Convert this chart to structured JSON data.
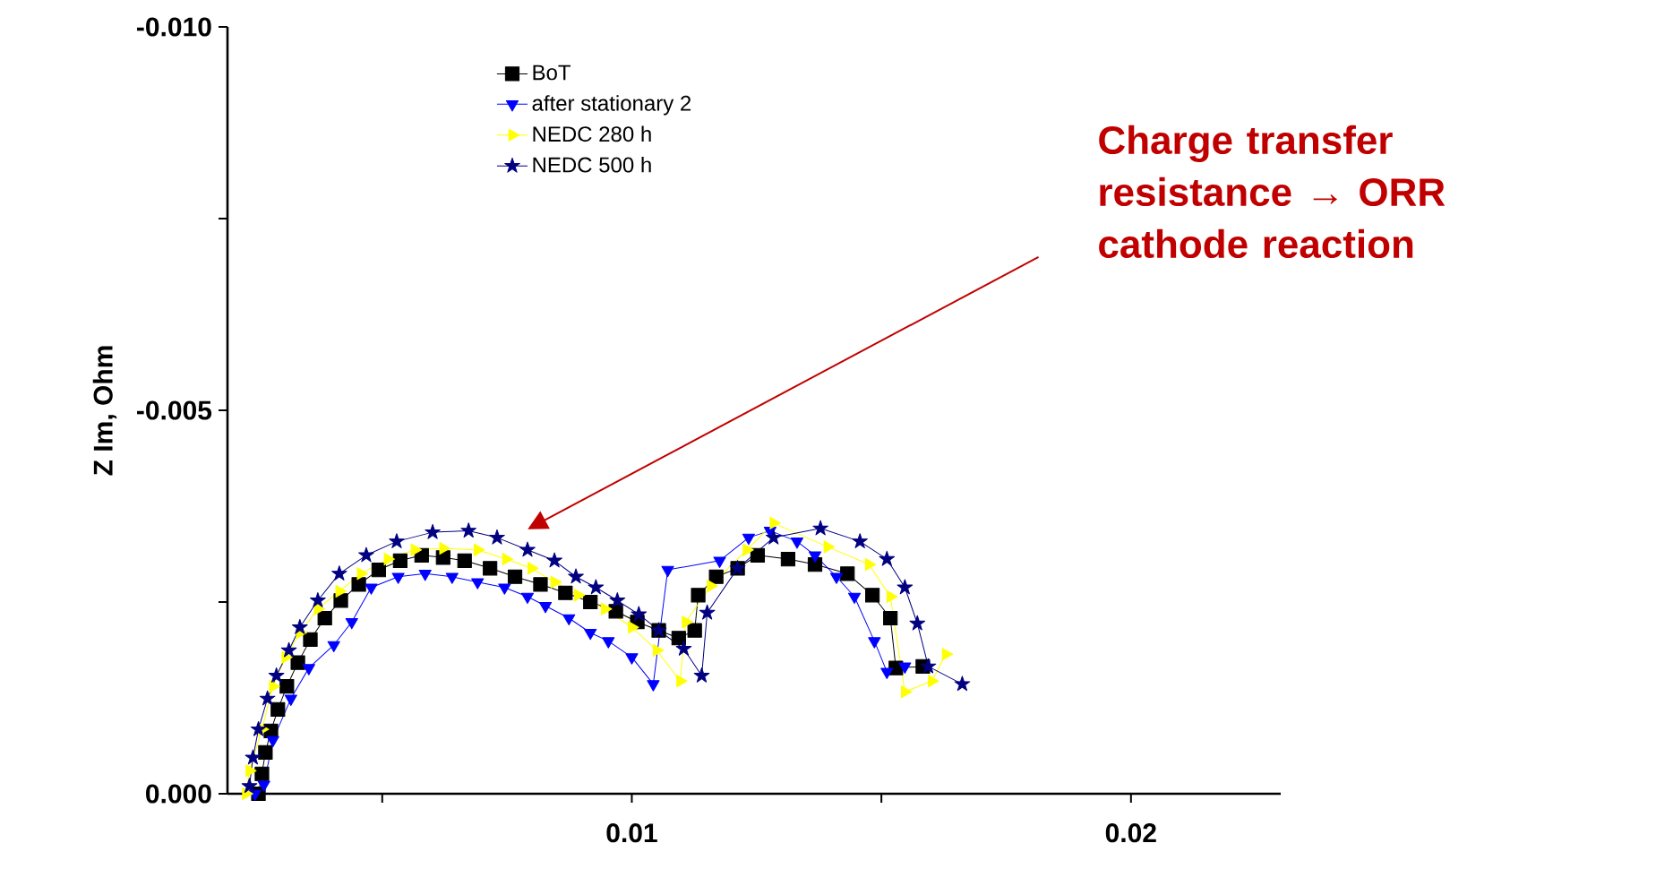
{
  "chart_data": {
    "type": "line",
    "ylabel": "Z Im, Ohm",
    "xlim": [
      0.0019,
      0.023
    ],
    "ylim": [
      0,
      -0.01
    ],
    "xticks": [
      {
        "value": 0.005,
        "label": null
      },
      {
        "value": 0.01,
        "label": "0.01"
      },
      {
        "value": 0.015,
        "label": null
      },
      {
        "value": 0.02,
        "label": "0.02"
      }
    ],
    "yticks": [
      {
        "value": -0.01,
        "label": "-0.010"
      },
      {
        "value": -0.0075,
        "label": null
      },
      {
        "value": -0.005,
        "label": "-0.005"
      },
      {
        "value": -0.0025,
        "label": null
      },
      {
        "value": 0,
        "label": "0.000"
      }
    ],
    "legend": "top left",
    "grid": false,
    "series": [
      {
        "name": "BoT",
        "color": "#000000",
        "marker": "square",
        "x": [
          0.00252,
          0.00259,
          0.00266,
          0.00277,
          0.00291,
          0.00309,
          0.00331,
          0.00356,
          0.00385,
          0.00417,
          0.00453,
          0.00493,
          0.00536,
          0.00579,
          0.00622,
          0.00665,
          0.00716,
          0.00766,
          0.00817,
          0.00867,
          0.00917,
          0.00968,
          0.01011,
          0.01054,
          0.01094,
          0.01126,
          0.01133,
          0.01169,
          0.01212,
          0.01252,
          0.01313,
          0.01367,
          0.01432,
          0.01482,
          0.01518,
          0.01529,
          0.01583
        ],
        "values": [
          0,
          -0.00026,
          -0.00054,
          -0.00082,
          -0.0011,
          -0.0014,
          -0.00171,
          -0.00201,
          -0.00229,
          -0.00252,
          -0.00273,
          -0.00292,
          -0.00304,
          -0.00311,
          -0.00308,
          -0.00304,
          -0.00294,
          -0.00283,
          -0.00273,
          -0.00262,
          -0.0025,
          -0.00238,
          -0.00224,
          -0.00213,
          -0.00203,
          -0.00213,
          -0.00259,
          -0.00283,
          -0.00294,
          -0.00311,
          -0.00306,
          -0.00299,
          -0.00287,
          -0.00259,
          -0.00229,
          -0.00164,
          -0.00166
        ]
      },
      {
        "name": "after stationary 2",
        "color": "#0000ff",
        "marker": "triangle",
        "x": [
          0.00245,
          0.00263,
          0.00281,
          0.00317,
          0.00353,
          0.00403,
          0.00439,
          0.00478,
          0.00532,
          0.00586,
          0.0064,
          0.00691,
          0.00745,
          0.00791,
          0.00827,
          0.00874,
          0.00917,
          0.00953,
          0.01,
          0.01043,
          0.01072,
          0.01176,
          0.01234,
          0.01277,
          0.01331,
          0.01367,
          0.0141,
          0.01446,
          0.01486,
          0.01511,
          0.01547
        ],
        "values": [
          0,
          -0.00012,
          -0.0007,
          -0.00124,
          -0.00164,
          -0.00194,
          -0.00224,
          -0.00269,
          -0.00283,
          -0.00287,
          -0.00283,
          -0.00276,
          -0.00269,
          -0.00257,
          -0.00245,
          -0.00229,
          -0.0021,
          -0.00199,
          -0.00178,
          -0.00143,
          -0.00292,
          -0.00304,
          -0.00334,
          -0.00343,
          -0.00329,
          -0.00311,
          -0.00283,
          -0.00257,
          -0.00199,
          -0.00159,
          -0.00166
        ]
      },
      {
        "name": "NEDC 280 h",
        "color": "#ffff00",
        "marker": "triangle",
        "x": [
          0.00227,
          0.00234,
          0.00259,
          0.00281,
          0.00306,
          0.00335,
          0.00371,
          0.00414,
          0.00457,
          0.00511,
          0.00565,
          0.00622,
          0.00691,
          0.00748,
          0.00799,
          0.00845,
          0.00892,
          0.00946,
          0.01,
          0.0105,
          0.01097,
          0.01108,
          0.01158,
          0.0123,
          0.01284,
          0.01392,
          0.01475,
          0.01518,
          0.01547,
          0.01601,
          0.01629
        ],
        "values": [
          0,
          -0.0003,
          -0.00084,
          -0.0014,
          -0.00178,
          -0.0021,
          -0.00241,
          -0.00264,
          -0.00287,
          -0.00306,
          -0.00318,
          -0.0032,
          -0.00318,
          -0.00306,
          -0.00294,
          -0.00276,
          -0.00259,
          -0.00241,
          -0.00217,
          -0.00187,
          -0.00147,
          -0.00224,
          -0.00271,
          -0.00318,
          -0.00353,
          -0.00322,
          -0.00299,
          -0.00257,
          -0.00133,
          -0.00147,
          -0.00182
        ]
      },
      {
        "name": "NEDC 500 h",
        "color": "#000080",
        "marker": "star",
        "x": [
          0.00234,
          0.00241,
          0.00252,
          0.0027,
          0.00288,
          0.00313,
          0.00335,
          0.00371,
          0.00414,
          0.00468,
          0.00529,
          0.00601,
          0.00673,
          0.0073,
          0.00791,
          0.00845,
          0.00888,
          0.00928,
          0.00971,
          0.01014,
          0.01054,
          0.01104,
          0.0114,
          0.01151,
          0.01212,
          0.01284,
          0.01378,
          0.01457,
          0.01511,
          0.01547,
          0.01572,
          0.01594,
          0.01662
        ],
        "values": [
          -0.0001,
          -0.00047,
          -0.00084,
          -0.00124,
          -0.00154,
          -0.00187,
          -0.00217,
          -0.00252,
          -0.00287,
          -0.00311,
          -0.00329,
          -0.00341,
          -0.00343,
          -0.00334,
          -0.00318,
          -0.00304,
          -0.00283,
          -0.00269,
          -0.00252,
          -0.00234,
          -0.00213,
          -0.00189,
          -0.00154,
          -0.00236,
          -0.00294,
          -0.00334,
          -0.00346,
          -0.00329,
          -0.00306,
          -0.00269,
          -0.00222,
          -0.00166,
          -0.00143
        ]
      }
    ],
    "annotations": [
      "Charge transfer resistance → ORR cathode reaction"
    ]
  }
}
